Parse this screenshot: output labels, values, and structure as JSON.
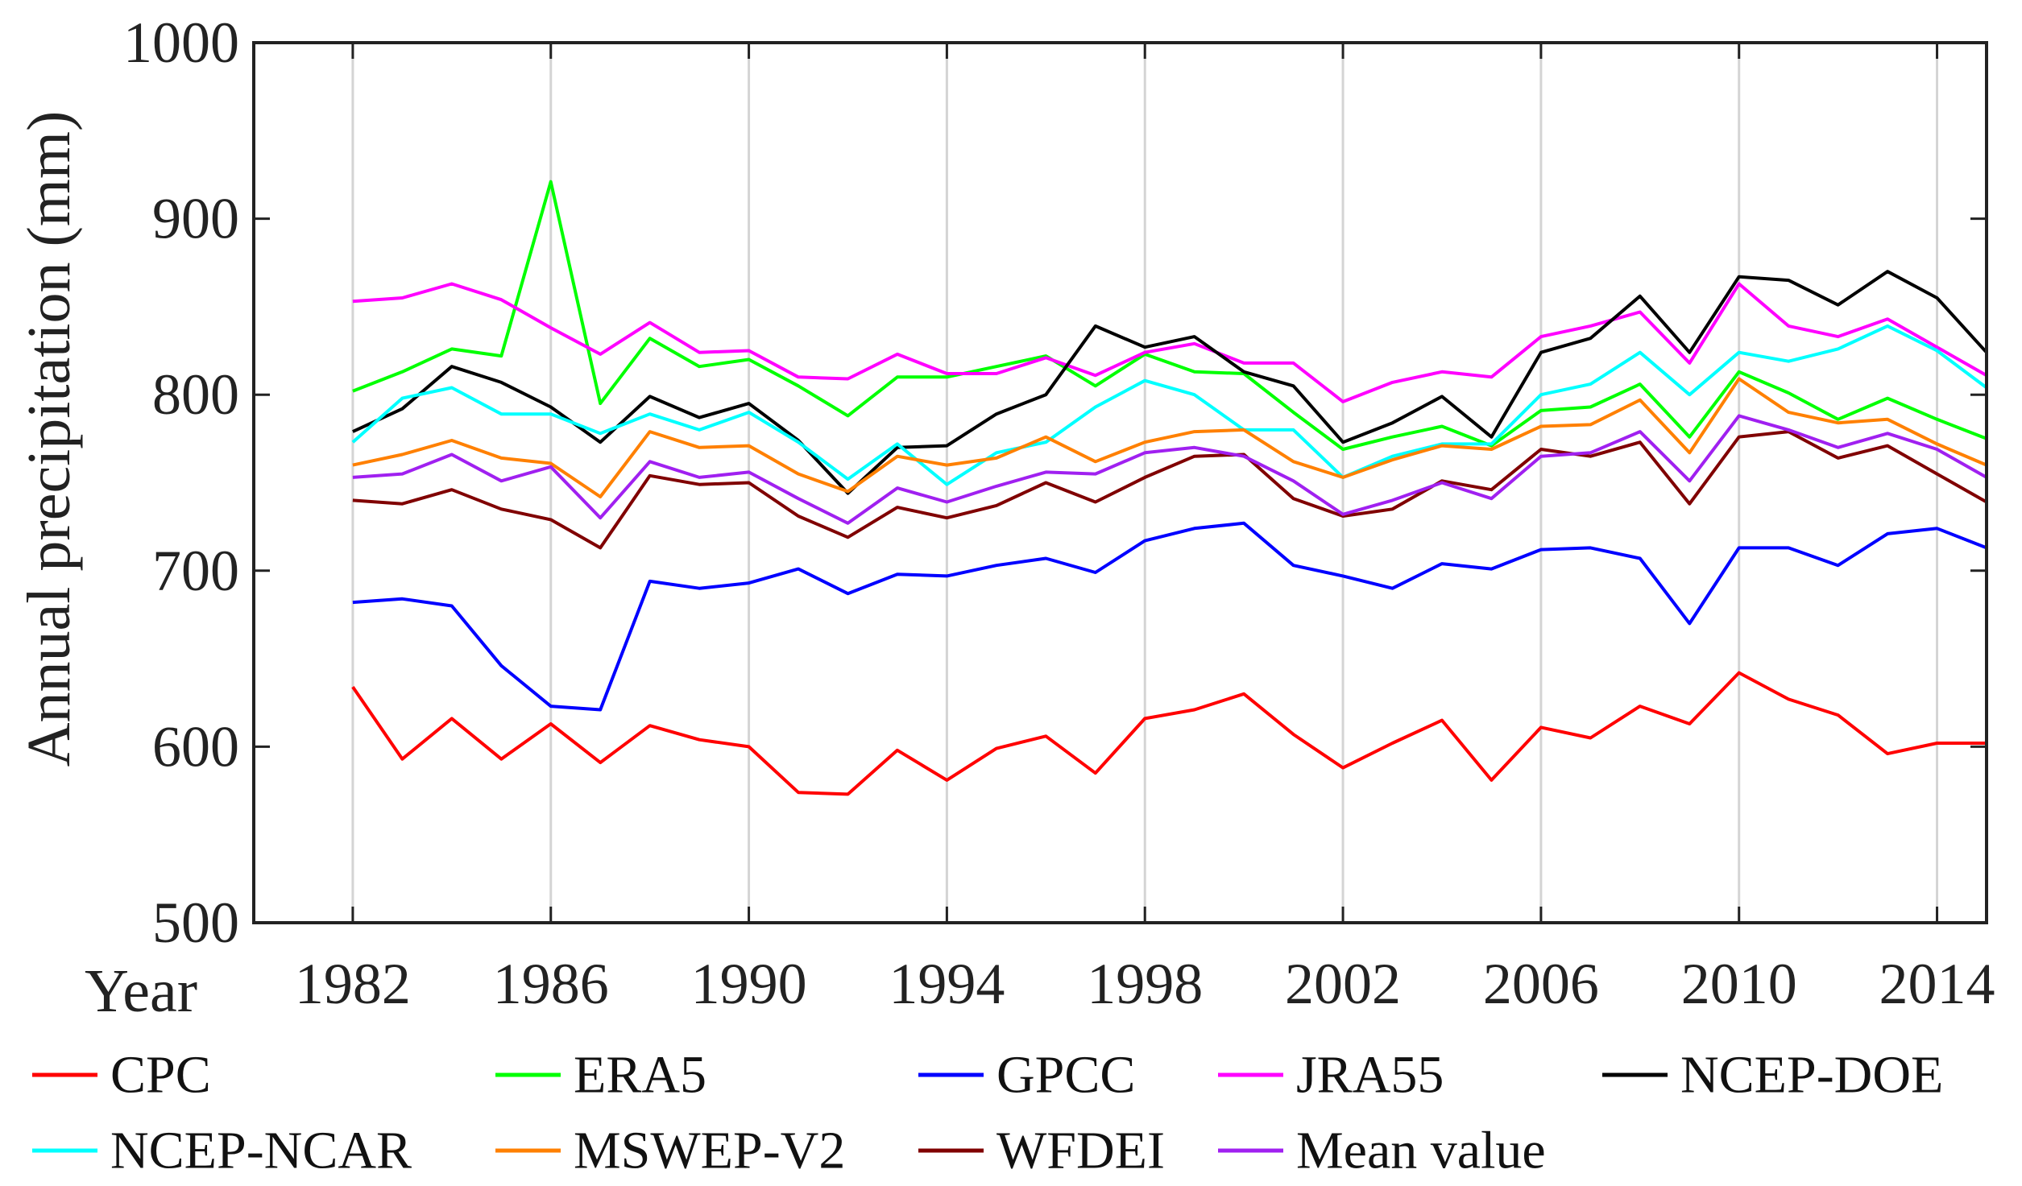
{
  "chart_data": {
    "type": "line",
    "xlabel": "Year",
    "ylabel": "Annual precipitation (mm)",
    "xlim": [
      1980,
      2015
    ],
    "ylim": [
      500,
      1000
    ],
    "xticks": [
      1982,
      1986,
      1990,
      1994,
      1998,
      2002,
      2006,
      2010,
      2014
    ],
    "yticks": [
      500,
      600,
      700,
      800,
      900,
      1000
    ],
    "grid": "vertical",
    "legend": "bottom",
    "x": [
      1982,
      1983,
      1984,
      1985,
      1986,
      1987,
      1988,
      1989,
      1990,
      1991,
      1992,
      1993,
      1994,
      1995,
      1996,
      1997,
      1998,
      1999,
      2000,
      2001,
      2002,
      2003,
      2004,
      2005,
      2006,
      2007,
      2008,
      2009,
      2010,
      2011,
      2012,
      2013,
      2014,
      2015
    ],
    "series": [
      {
        "name": "CPC",
        "color": "#ff0000",
        "values": [
          634,
          593,
          616,
          593,
          613,
          591,
          612,
          604,
          600,
          574,
          573,
          598,
          581,
          599,
          606,
          585,
          616,
          621,
          630,
          607,
          588,
          602,
          615,
          581,
          611,
          605,
          623,
          613,
          642,
          627,
          618,
          596,
          602,
          602
        ]
      },
      {
        "name": "ERA5",
        "color": "#00ff00",
        "values": [
          802,
          813,
          826,
          822,
          921,
          795,
          832,
          816,
          820,
          805,
          788,
          810,
          810,
          816,
          822,
          805,
          823,
          813,
          812,
          790,
          769,
          776,
          782,
          771,
          791,
          793,
          806,
          776,
          813,
          801,
          786,
          798,
          786,
          775
        ]
      },
      {
        "name": "GPCC",
        "color": "#0000ff",
        "values": [
          682,
          684,
          680,
          646,
          623,
          621,
          694,
          690,
          693,
          701,
          687,
          698,
          697,
          703,
          707,
          699,
          717,
          724,
          727,
          703,
          697,
          690,
          704,
          701,
          712,
          713,
          707,
          670,
          713,
          713,
          703,
          721,
          724,
          713
        ]
      },
      {
        "name": "JRA55",
        "color": "#ff00ff",
        "values": [
          853,
          855,
          863,
          854,
          838,
          823,
          841,
          824,
          825,
          810,
          809,
          823,
          812,
          812,
          821,
          811,
          824,
          829,
          818,
          818,
          796,
          807,
          813,
          810,
          833,
          839,
          847,
          818,
          863,
          839,
          833,
          843,
          827,
          811
        ]
      },
      {
        "name": "NCEP-DOE",
        "color": "#000000",
        "values": [
          779,
          792,
          816,
          807,
          793,
          773,
          799,
          787,
          795,
          774,
          744,
          770,
          771,
          789,
          800,
          839,
          827,
          833,
          813,
          805,
          773,
          784,
          799,
          776,
          824,
          832,
          856,
          824,
          867,
          865,
          851,
          870,
          855,
          824
        ]
      },
      {
        "name": "NCEP-NCAR",
        "color": "#00ffff",
        "values": [
          773,
          798,
          804,
          789,
          789,
          778,
          789,
          780,
          790,
          773,
          752,
          772,
          749,
          767,
          773,
          793,
          808,
          800,
          780,
          780,
          753,
          765,
          772,
          772,
          800,
          806,
          824,
          800,
          824,
          819,
          826,
          839,
          825,
          804
        ]
      },
      {
        "name": "MSWEP-V2",
        "color": "#ff8000",
        "values": [
          760,
          766,
          774,
          764,
          761,
          742,
          779,
          770,
          771,
          755,
          745,
          765,
          760,
          764,
          776,
          762,
          773,
          779,
          780,
          762,
          753,
          763,
          771,
          769,
          782,
          783,
          797,
          767,
          809,
          790,
          784,
          786,
          772,
          760
        ]
      },
      {
        "name": "WFDEI",
        "color": "#800000",
        "values": [
          740,
          738,
          746,
          735,
          729,
          713,
          754,
          749,
          750,
          731,
          719,
          736,
          730,
          737,
          750,
          739,
          753,
          765,
          766,
          741,
          731,
          735,
          751,
          746,
          769,
          765,
          773,
          738,
          776,
          779,
          764,
          771,
          755,
          739
        ]
      },
      {
        "name": "Mean value",
        "color": "#a020f0",
        "values": [
          753,
          755,
          766,
          751,
          759,
          730,
          762,
          753,
          756,
          741,
          727,
          747,
          739,
          748,
          756,
          755,
          767,
          770,
          765,
          751,
          732,
          740,
          750,
          741,
          765,
          767,
          779,
          751,
          788,
          780,
          770,
          778,
          769,
          753
        ]
      }
    ]
  }
}
